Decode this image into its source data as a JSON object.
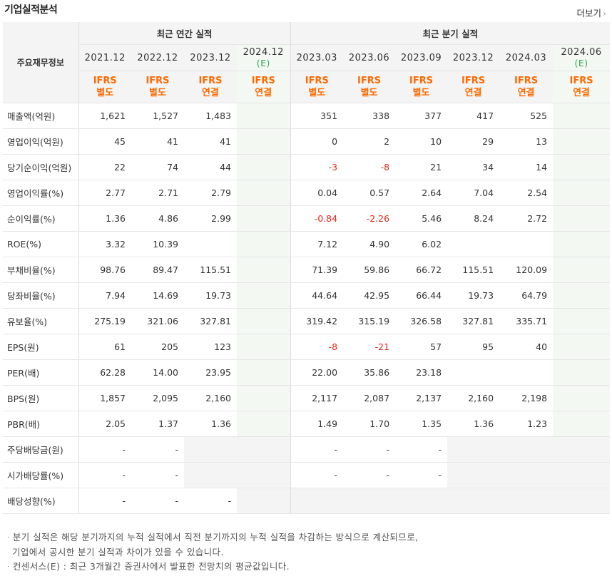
{
  "title": "기업실적분석",
  "more_label": "더보기",
  "label_header": "주요재무정보",
  "annual_header": "최근 연간 실적",
  "quarter_header": "최근 분기 실적",
  "annual_periods": [
    {
      "date": "2021.12",
      "std1": "IFRS",
      "std2": "별도",
      "est": ""
    },
    {
      "date": "2022.12",
      "std1": "IFRS",
      "std2": "별도",
      "est": ""
    },
    {
      "date": "2023.12",
      "std1": "IFRS",
      "std2": "연결",
      "est": ""
    },
    {
      "date": "2024.12",
      "std1": "IFRS",
      "std2": "연결",
      "est": "(E)"
    }
  ],
  "quarter_periods": [
    {
      "date": "2023.03",
      "std1": "IFRS",
      "std2": "별도",
      "est": ""
    },
    {
      "date": "2023.06",
      "std1": "IFRS",
      "std2": "별도",
      "est": ""
    },
    {
      "date": "2023.09",
      "std1": "IFRS",
      "std2": "별도",
      "est": ""
    },
    {
      "date": "2023.12",
      "std1": "IFRS",
      "std2": "연결",
      "est": ""
    },
    {
      "date": "2024.03",
      "std1": "IFRS",
      "std2": "연결",
      "est": ""
    },
    {
      "date": "2024.06",
      "std1": "IFRS",
      "std2": "연결",
      "est": "(E)"
    }
  ],
  "rows": [
    {
      "label": "매출액(억원)",
      "annual": [
        "1,621",
        "1,527",
        "1,483",
        ""
      ],
      "quarter": [
        "351",
        "338",
        "377",
        "417",
        "525",
        ""
      ]
    },
    {
      "label": "영업이익(억원)",
      "annual": [
        "45",
        "41",
        "41",
        ""
      ],
      "quarter": [
        "0",
        "2",
        "10",
        "29",
        "13",
        ""
      ]
    },
    {
      "label": "당기순이익(억원)",
      "annual": [
        "22",
        "74",
        "44",
        ""
      ],
      "quarter": [
        "-3",
        "-8",
        "21",
        "34",
        "14",
        ""
      ]
    },
    {
      "label": "영업이익률(%)",
      "annual": [
        "2.77",
        "2.71",
        "2.79",
        ""
      ],
      "quarter": [
        "0.04",
        "0.57",
        "2.64",
        "7.04",
        "2.54",
        ""
      ]
    },
    {
      "label": "순이익률(%)",
      "annual": [
        "1.36",
        "4.86",
        "2.99",
        ""
      ],
      "quarter": [
        "-0.84",
        "-2.26",
        "5.46",
        "8.24",
        "2.72",
        ""
      ]
    },
    {
      "label": "ROE(%)",
      "annual": [
        "3.32",
        "10.39",
        "",
        ""
      ],
      "quarter": [
        "7.12",
        "4.90",
        "6.02",
        "",
        "",
        ""
      ]
    },
    {
      "label": "부채비율(%)",
      "annual": [
        "98.76",
        "89.47",
        "115.51",
        ""
      ],
      "quarter": [
        "71.39",
        "59.86",
        "66.72",
        "115.51",
        "120.09",
        ""
      ]
    },
    {
      "label": "당좌비율(%)",
      "annual": [
        "7.94",
        "14.69",
        "19.73",
        ""
      ],
      "quarter": [
        "44.64",
        "42.95",
        "66.44",
        "19.73",
        "64.79",
        ""
      ]
    },
    {
      "label": "유보율(%)",
      "annual": [
        "275.19",
        "321.06",
        "327.81",
        ""
      ],
      "quarter": [
        "319.42",
        "315.19",
        "326.58",
        "327.81",
        "335.71",
        ""
      ]
    },
    {
      "label": "EPS(원)",
      "annual": [
        "61",
        "205",
        "123",
        ""
      ],
      "quarter": [
        "-8",
        "-21",
        "57",
        "95",
        "40",
        ""
      ]
    },
    {
      "label": "PER(배)",
      "annual": [
        "62.28",
        "14.00",
        "23.95",
        ""
      ],
      "quarter": [
        "22.00",
        "35.86",
        "23.18",
        "",
        "",
        ""
      ]
    },
    {
      "label": "BPS(원)",
      "annual": [
        "1,857",
        "2,095",
        "2,160",
        ""
      ],
      "quarter": [
        "2,117",
        "2,087",
        "2,137",
        "2,160",
        "2,198",
        ""
      ]
    },
    {
      "label": "PBR(배)",
      "annual": [
        "2.05",
        "1.37",
        "1.36",
        ""
      ],
      "quarter": [
        "1.49",
        "1.70",
        "1.35",
        "1.36",
        "1.23",
        ""
      ]
    },
    {
      "label": "주당배당금(원)",
      "annual": [
        "-",
        "-",
        "",
        ""
      ],
      "quarter": [
        "-",
        "-",
        "-",
        "",
        "",
        ""
      ]
    },
    {
      "label": "시가배당률(%)",
      "annual": [
        "-",
        "-",
        "",
        ""
      ],
      "quarter": [
        "-",
        "-",
        "-",
        "",
        "",
        ""
      ]
    },
    {
      "label": "배당성향(%)",
      "annual": [
        "-",
        "-",
        "-",
        ""
      ],
      "quarter": [
        "",
        "",
        "",
        "",
        "",
        ""
      ]
    }
  ],
  "notes": [
    "분기 실적은 해당 분기까지의 누적 실적에서 직전 분기까지의 누적 실적을 차감하는 방식으로 계산되므로,",
    "기업에서 공시한 분기 실적과 차이가 있을 수 있습니다.",
    "컨센서스(E) : 최근 3개월간 증권사에서 발표한 전망치의 평균값입니다."
  ],
  "colors": {
    "ifrs": "#ff6a00",
    "estimate": "#34a853",
    "negative": "#e4271b",
    "header_bg": "#f4f4f4",
    "estimate_bg": "#f3f8f3"
  }
}
